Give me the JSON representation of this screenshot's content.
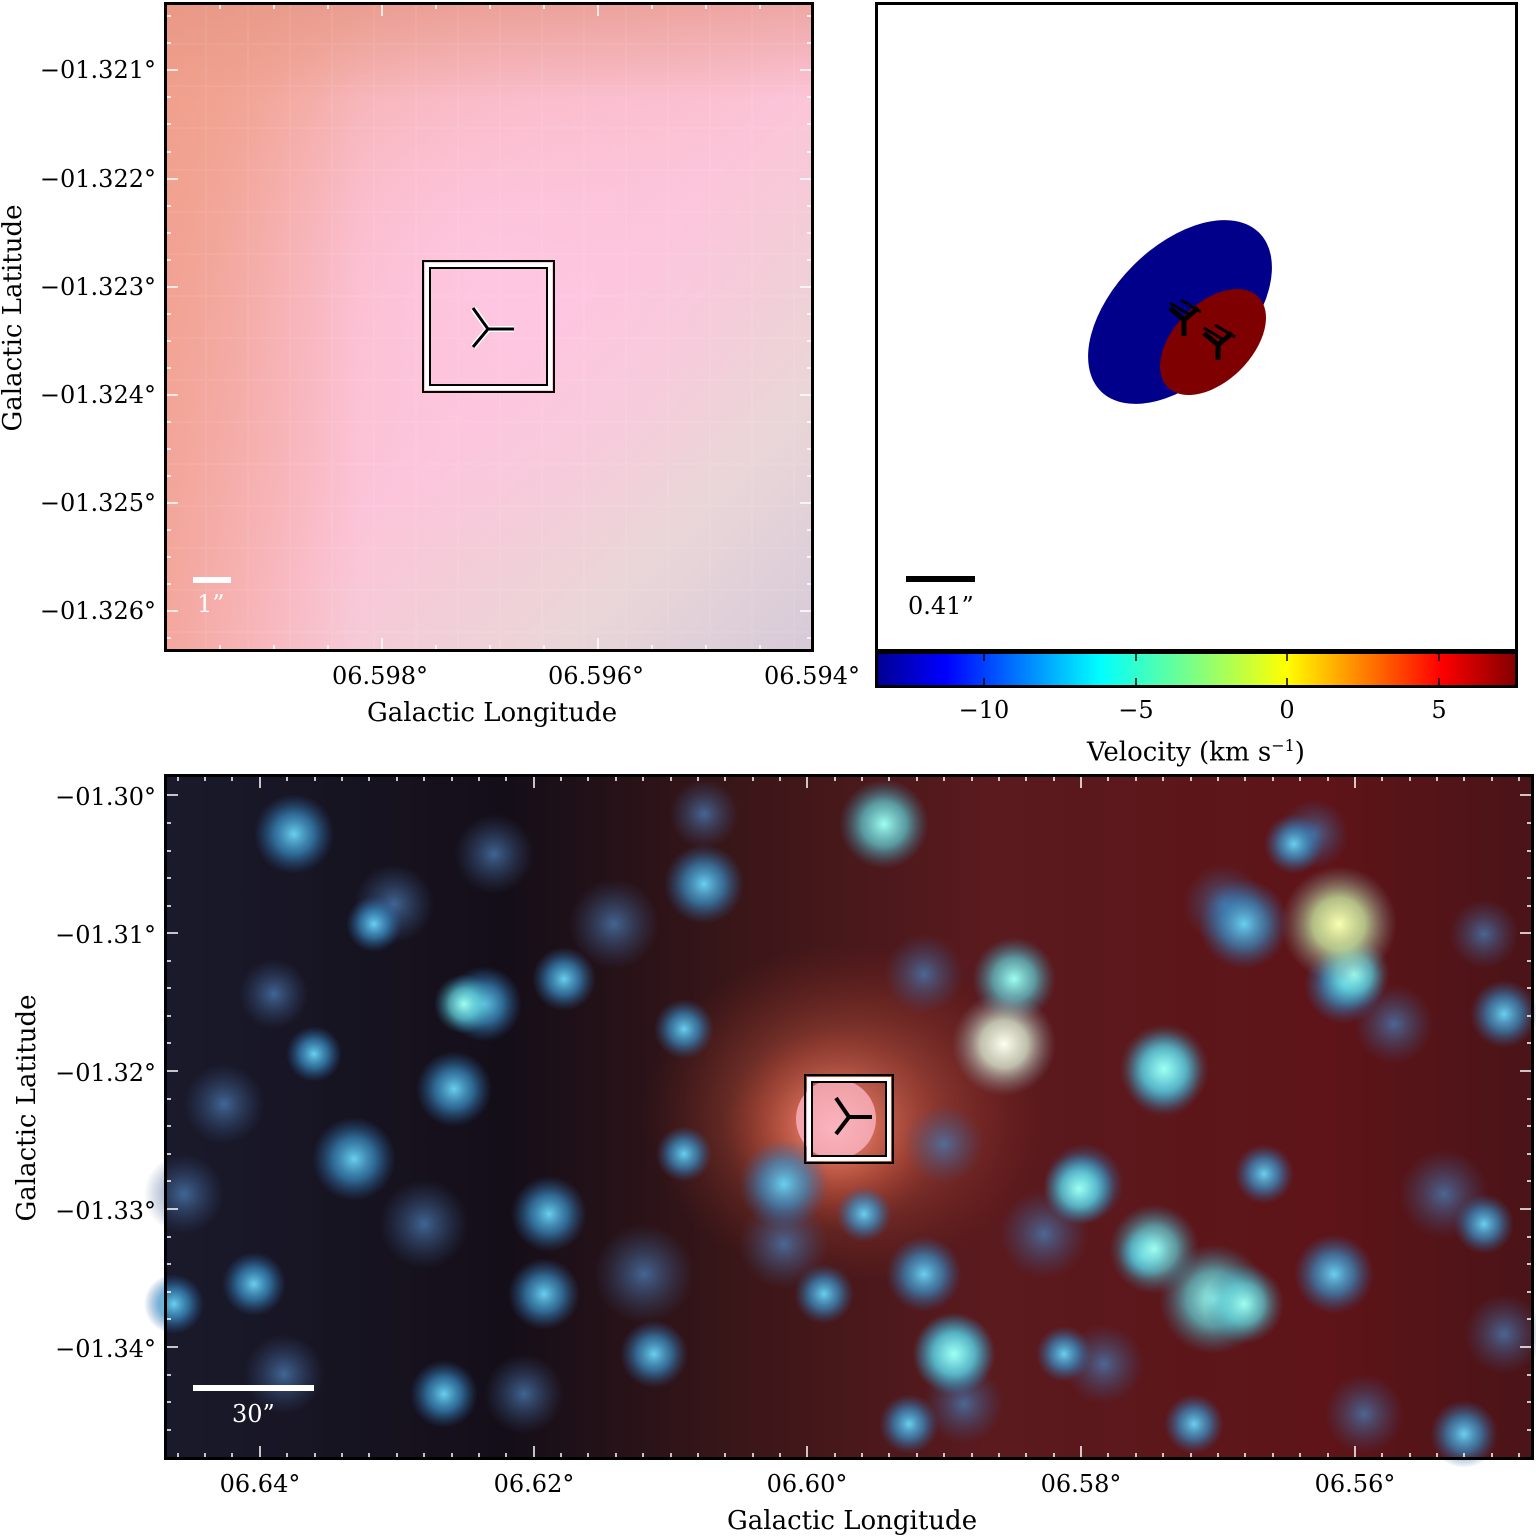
{
  "panel_a": {
    "y_ticks": [
      "−01.321°",
      "−01.322°",
      "−01.323°",
      "−01.324°",
      "−01.325°",
      "−01.326°"
    ],
    "x_ticks": [
      "06.598°",
      "06.596°",
      "06.594°"
    ],
    "xlabel": "Galactic Longitude",
    "ylabel": "Galactic Latitude",
    "scale_label": "1”"
  },
  "panel_b": {
    "scale_label": "0.41”",
    "colorbar_ticks": [
      "−10",
      "−5",
      "0",
      "5"
    ],
    "colorbar_label": "Velocity (km s",
    "colorbar_label_sup": "−1",
    "colorbar_label_close": ")",
    "colors": {
      "blue_ellipse": "#00008b",
      "red_ellipse": "#7f0000"
    }
  },
  "panel_c": {
    "y_ticks": [
      "−01.30°",
      "−01.31°",
      "−01.32°",
      "−01.33°",
      "−01.34°"
    ],
    "x_ticks": [
      "06.64°",
      "06.62°",
      "06.60°",
      "06.58°",
      "06.56°"
    ],
    "xlabel": "Galactic Longitude",
    "ylabel": "Galactic Latitude",
    "scale_label": "30”"
  }
}
